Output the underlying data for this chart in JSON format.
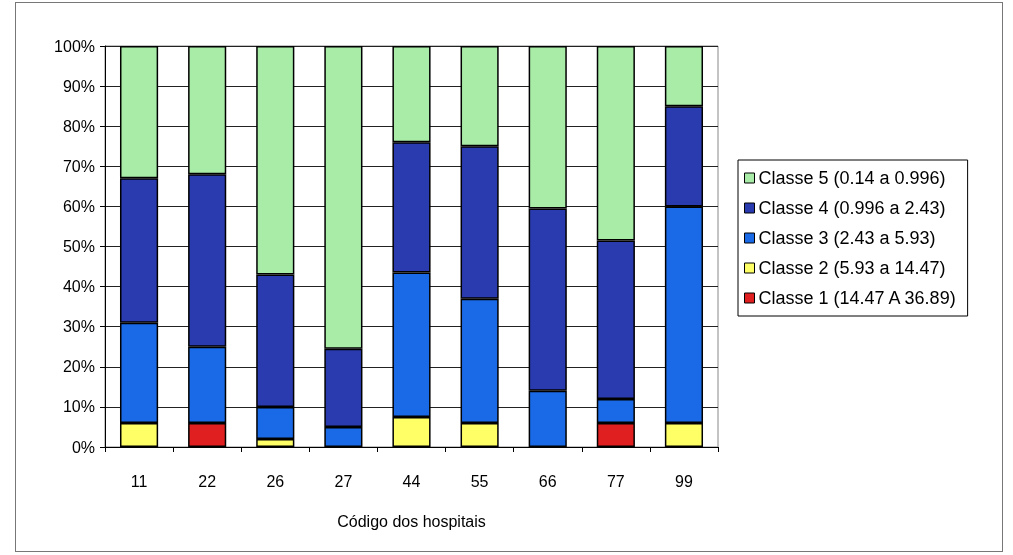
{
  "chart_data": {
    "type": "bar",
    "stacked": true,
    "xlabel": "Código dos hospitais",
    "categories": [
      "11",
      "22",
      "26",
      "27",
      "44",
      "55",
      "66",
      "77",
      "99"
    ],
    "series": [
      {
        "name": "Classe 1 (14.47 A 36.89)",
        "color": "#e02020",
        "values": [
          0,
          6,
          0,
          0,
          0,
          0,
          0,
          6,
          0
        ]
      },
      {
        "name": "Classe 2 (5.93 a 14.47)",
        "color": "#ffff66",
        "values": [
          6,
          0,
          2,
          0,
          7.5,
          6,
          0,
          0,
          6
        ]
      },
      {
        "name": "Classe 3 (2.43 a 5.93)",
        "color": "#1a6ae8",
        "values": [
          25,
          19,
          8,
          5,
          36,
          31,
          14,
          6,
          54
        ]
      },
      {
        "name": "Classe 4 (0.996 a 2.43)",
        "color": "#2a3bb0",
        "values": [
          36,
          43,
          33,
          19.5,
          32.5,
          38,
          45.5,
          39.5,
          25
        ]
      },
      {
        "name": "Classe 5 (0.14 a 0.996)",
        "color": "#a8eca8",
        "values": [
          33,
          32,
          57,
          75.5,
          24,
          25,
          40.5,
          48.5,
          15
        ]
      }
    ],
    "ylim": [
      0,
      100
    ],
    "yticks": [
      {
        "value": 0,
        "label": "0%"
      },
      {
        "value": 10,
        "label": "10%"
      },
      {
        "value": 20,
        "label": "20%"
      },
      {
        "value": 30,
        "label": "30%"
      },
      {
        "value": 40,
        "label": "40%"
      },
      {
        "value": 50,
        "label": "50%"
      },
      {
        "value": 60,
        "label": "60%"
      },
      {
        "value": 70,
        "label": "70%"
      },
      {
        "value": 80,
        "label": "80%"
      },
      {
        "value": 90,
        "label": "90%"
      },
      {
        "value": 100,
        "label": "100%"
      }
    ],
    "grid": "y",
    "legend": "right"
  }
}
